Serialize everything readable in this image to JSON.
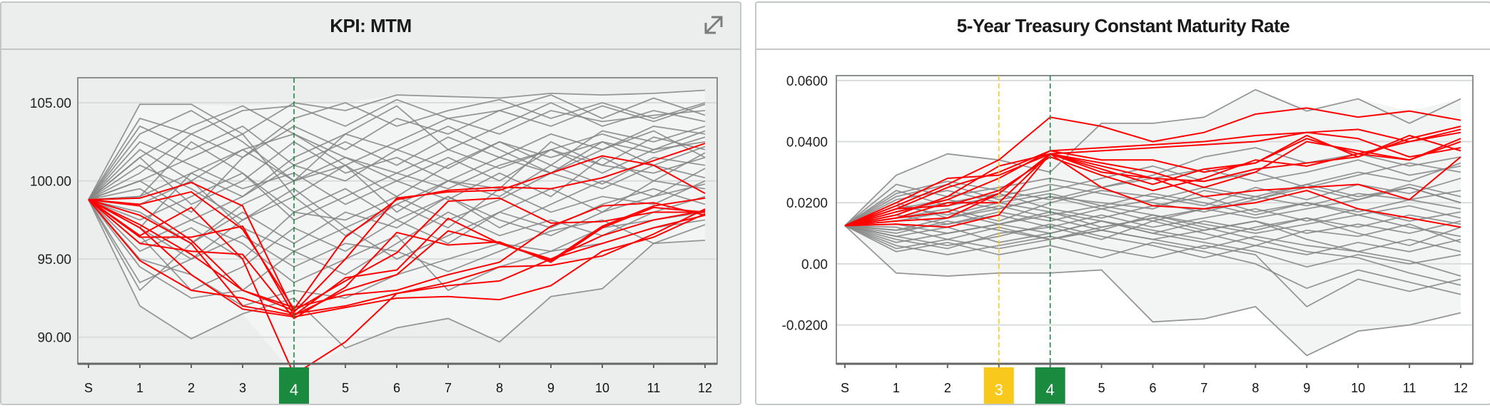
{
  "chart_data": [
    {
      "type": "line",
      "title": "KPI: MTM",
      "categories": [
        "S",
        "1",
        "2",
        "3",
        "4",
        "5",
        "6",
        "7",
        "8",
        "9",
        "10",
        "11",
        "12"
      ],
      "ylim": [
        88.3,
        106.6
      ],
      "yticks": [
        {
          "value": 105,
          "label": "105.00"
        },
        {
          "value": 100,
          "label": "100.00"
        },
        {
          "value": 95,
          "label": "95.00"
        },
        {
          "value": 90,
          "label": "90.00"
        }
      ],
      "grid": true,
      "legend": "none",
      "markers": [
        {
          "category": "4",
          "label": "4",
          "color": "#1a8a3f"
        }
      ],
      "colors": {
        "background_series": "#858585",
        "highlight_series": "#ff0000",
        "envelope": "#f3f5f5"
      },
      "highlight_series": [
        [
          98.8,
          98.9,
          99.9,
          98.4,
          91.6,
          95.0,
          98.9,
          99.3,
          99.4,
          100.5,
          101.6,
          101.0,
          99.2
        ],
        [
          98.8,
          98.5,
          99.3,
          96.9,
          91.8,
          96.4,
          98.8,
          99.4,
          99.6,
          99.5,
          100.2,
          101.3,
          102.4
        ],
        [
          98.8,
          96.4,
          96.4,
          97.1,
          91.4,
          93.8,
          94.3,
          97.6,
          96.0,
          94.9,
          97.1,
          98.4,
          98.9
        ],
        [
          98.8,
          96.0,
          95.5,
          95.3,
          91.2,
          93.2,
          96.7,
          95.9,
          96.1,
          94.8,
          97.0,
          98.3,
          98.0
        ],
        [
          98.8,
          94.9,
          93.0,
          92.5,
          91.5,
          92.0,
          92.8,
          93.3,
          93.6,
          95.0,
          96.0,
          97.0,
          97.8
        ],
        [
          98.8,
          97.0,
          94.0,
          91.8,
          91.3,
          91.9,
          92.5,
          92.6,
          92.4,
          93.3,
          95.5,
          96.4,
          97.9
        ],
        [
          98.8,
          96.5,
          98.3,
          95.0,
          87.6,
          89.7,
          92.8,
          93.5,
          94.5,
          94.6,
          95.2,
          96.6,
          98.2
        ],
        [
          98.8,
          97.2,
          95.3,
          93.0,
          91.7,
          93.6,
          95.4,
          98.7,
          98.9,
          97.3,
          97.4,
          98.0,
          98.0
        ],
        [
          98.8,
          97.8,
          96.0,
          92.0,
          91.4,
          93.0,
          94.0,
          96.8,
          96.0,
          95.0,
          96.5,
          97.5,
          98.1
        ],
        [
          98.8,
          98.4,
          96.2,
          93.0,
          91.9,
          92.7,
          93.0,
          94.0,
          94.8,
          97.1,
          98.4,
          98.6,
          97.8
        ]
      ],
      "background_series": [
        [
          98.8,
          104.9,
          104.9,
          103.0,
          105.0,
          104.5,
          105.5,
          105.4,
          105.3,
          105.6,
          105.5,
          105.6,
          105.8
        ],
        [
          98.8,
          92.0,
          89.9,
          91.5,
          92.5,
          89.3,
          90.6,
          91.2,
          89.7,
          92.6,
          93.1,
          96.0,
          96.2
        ],
        [
          98.8,
          101.5,
          103.5,
          104.8,
          103.0,
          101.0,
          102.5,
          104.0,
          103.0,
          104.5,
          103.8,
          104.2,
          104.5
        ],
        [
          98.8,
          97.0,
          100.5,
          99.0,
          101.5,
          103.0,
          102.0,
          100.8,
          102.5,
          101.0,
          103.2,
          102.5,
          103.5
        ],
        [
          98.8,
          95.5,
          97.0,
          95.0,
          98.0,
          97.5,
          99.0,
          97.5,
          98.8,
          100.5,
          99.5,
          101.0,
          100.2
        ],
        [
          98.8,
          102.5,
          101.0,
          99.5,
          100.5,
          98.5,
          100.0,
          101.5,
          100.0,
          102.0,
          101.0,
          102.8,
          102.0
        ],
        [
          98.8,
          93.5,
          95.0,
          96.5,
          94.5,
          96.0,
          95.5,
          94.2,
          95.5,
          96.8,
          97.5,
          96.0,
          97.2
        ],
        [
          98.8,
          100.0,
          98.0,
          101.5,
          103.5,
          102.0,
          104.0,
          103.0,
          104.5,
          103.5,
          104.8,
          103.8,
          104.9
        ],
        [
          98.8,
          99.0,
          102.5,
          100.5,
          98.0,
          99.5,
          97.5,
          99.0,
          97.0,
          98.5,
          100.0,
          99.0,
          100.8
        ],
        [
          98.8,
          96.5,
          93.0,
          94.5,
          97.0,
          95.5,
          97.5,
          96.0,
          98.0,
          97.0,
          98.5,
          99.5,
          98.5
        ],
        [
          98.8,
          103.5,
          102.0,
          103.5,
          101.0,
          102.5,
          101.0,
          102.8,
          101.5,
          103.0,
          102.0,
          103.5,
          103.0
        ],
        [
          98.8,
          98.0,
          96.0,
          98.5,
          100.0,
          101.5,
          100.0,
          98.8,
          100.5,
          99.0,
          101.5,
          100.0,
          101.8
        ],
        [
          98.8,
          101.0,
          99.5,
          97.5,
          99.5,
          97.0,
          98.5,
          100.0,
          99.0,
          101.0,
          99.8,
          101.5,
          101.0
        ],
        [
          98.8,
          94.5,
          92.5,
          93.0,
          95.5,
          94.0,
          96.0,
          98.0,
          96.5,
          97.5,
          96.5,
          98.0,
          99.0
        ],
        [
          98.8,
          100.5,
          103.0,
          101.5,
          104.0,
          105.0,
          103.5,
          104.5,
          105.2,
          104.0,
          105.0,
          104.0,
          105.0
        ],
        [
          98.8,
          97.5,
          99.0,
          100.5,
          97.5,
          99.0,
          100.5,
          99.5,
          101.0,
          102.0,
          100.5,
          102.0,
          102.5
        ],
        [
          98.8,
          102.0,
          100.0,
          102.0,
          100.0,
          101.0,
          99.0,
          101.0,
          102.5,
          101.5,
          102.5,
          101.0,
          102.2
        ],
        [
          98.8,
          96.0,
          97.5,
          96.0,
          93.5,
          95.0,
          96.5,
          93.0,
          94.5,
          95.5,
          97.0,
          97.5,
          98.0
        ],
        [
          98.8,
          99.5,
          97.5,
          99.0,
          101.0,
          100.0,
          102.0,
          103.5,
          102.0,
          100.5,
          102.0,
          103.2,
          101.5
        ],
        [
          98.8,
          103.0,
          104.5,
          102.5,
          100.0,
          103.0,
          104.8,
          102.0,
          103.5,
          105.0,
          103.5,
          104.5,
          103.8
        ],
        [
          98.8,
          98.5,
          100.0,
          97.0,
          95.5,
          97.0,
          95.0,
          96.5,
          98.0,
          99.5,
          98.0,
          99.0,
          99.8
        ],
        [
          98.8,
          95.0,
          94.0,
          92.0,
          93.0,
          92.5,
          94.0,
          95.0,
          96.0,
          95.5,
          96.0,
          97.0,
          97.5
        ],
        [
          98.8,
          101.5,
          98.5,
          100.0,
          102.5,
          100.5,
          101.5,
          100.0,
          101.5,
          100.5,
          102.5,
          101.8,
          102.8
        ],
        [
          98.8,
          100.0,
          101.5,
          103.0,
          99.0,
          101.0,
          98.0,
          100.0,
          99.5,
          102.5,
          101.0,
          100.5,
          101.5
        ],
        [
          98.8,
          97.0,
          95.0,
          97.5,
          99.0,
          96.5,
          98.5,
          97.0,
          99.5,
          98.0,
          99.0,
          98.5,
          100.0
        ],
        [
          98.8,
          104.0,
          103.0,
          104.5,
          104.8,
          103.5,
          105.2,
          104.0,
          104.5,
          105.5,
          104.0,
          105.3,
          104.2
        ],
        [
          98.8,
          93.0,
          96.0,
          98.0,
          96.0,
          98.0,
          97.0,
          99.0,
          97.5,
          96.5,
          98.0,
          100.0,
          99.5
        ],
        [
          98.8,
          99.0,
          100.5,
          102.0,
          103.0,
          101.5,
          100.5,
          102.0,
          100.8,
          102.0,
          103.0,
          102.0,
          103.2
        ]
      ]
    },
    {
      "type": "line",
      "title": "5-Year Treasury Constant Maturity Rate",
      "categories": [
        "S",
        "1",
        "2",
        "3",
        "4",
        "5",
        "6",
        "7",
        "8",
        "9",
        "10",
        "11",
        "12"
      ],
      "ylim": [
        -0.0327,
        0.0616
      ],
      "yticks": [
        {
          "value": 0.06,
          "label": "0.0600"
        },
        {
          "value": 0.04,
          "label": "0.0400"
        },
        {
          "value": 0.02,
          "label": "0.0200"
        },
        {
          "value": 0,
          "label": "0.00"
        },
        {
          "value": -0.02,
          "label": "-0.0200"
        }
      ],
      "grid": true,
      "legend": "none",
      "markers": [
        {
          "category": "3",
          "label": "3",
          "color": "#f8c81c"
        },
        {
          "category": "4",
          "label": "4",
          "color": "#1a8a3f"
        }
      ],
      "colors": {
        "background_series": "#858585",
        "highlight_series": "#ff0000",
        "envelope": "#f3f5f5"
      },
      "highlight_series": [
        [
          0.0125,
          0.019,
          0.026,
          0.034,
          0.048,
          0.045,
          0.04,
          0.043,
          0.049,
          0.051,
          0.048,
          0.05,
          0.047
        ],
        [
          0.0125,
          0.018,
          0.025,
          0.03,
          0.037,
          0.038,
          0.039,
          0.04,
          0.042,
          0.043,
          0.044,
          0.04,
          0.044
        ],
        [
          0.0125,
          0.016,
          0.022,
          0.032,
          0.036,
          0.033,
          0.03,
          0.025,
          0.03,
          0.04,
          0.037,
          0.034,
          0.041
        ],
        [
          0.0125,
          0.015,
          0.02,
          0.02,
          0.036,
          0.031,
          0.026,
          0.031,
          0.033,
          0.042,
          0.035,
          0.041,
          0.045
        ],
        [
          0.0125,
          0.014,
          0.015,
          0.023,
          0.036,
          0.03,
          0.028,
          0.022,
          0.024,
          0.025,
          0.026,
          0.021,
          0.035
        ],
        [
          0.0125,
          0.013,
          0.012,
          0.016,
          0.036,
          0.025,
          0.019,
          0.018,
          0.02,
          0.024,
          0.018,
          0.015,
          0.012
        ],
        [
          0.0125,
          0.017,
          0.021,
          0.028,
          0.037,
          0.034,
          0.034,
          0.03,
          0.033,
          0.041,
          0.036,
          0.034,
          0.04
        ],
        [
          0.0125,
          0.02,
          0.028,
          0.029,
          0.036,
          0.037,
          0.038,
          0.039,
          0.04,
          0.043,
          0.041,
          0.035,
          0.038
        ],
        [
          0.0125,
          0.018,
          0.019,
          0.024,
          0.035,
          0.029,
          0.024,
          0.028,
          0.034,
          0.032,
          0.036,
          0.04,
          0.043
        ],
        [
          0.0125,
          0.015,
          0.017,
          0.023,
          0.036,
          0.032,
          0.028,
          0.027,
          0.031,
          0.033,
          0.035,
          0.042,
          0.037
        ]
      ],
      "background_series": [
        [
          0.0125,
          0.029,
          0.036,
          0.034,
          0.03,
          0.046,
          0.046,
          0.048,
          0.057,
          0.05,
          0.054,
          0.046,
          0.054
        ],
        [
          0.0125,
          -0.003,
          -0.004,
          -0.003,
          -0.003,
          -0.002,
          -0.019,
          -0.018,
          -0.014,
          -0.03,
          -0.022,
          -0.02,
          -0.016
        ],
        [
          0.0125,
          0.02,
          0.015,
          0.018,
          0.022,
          0.02,
          0.018,
          0.024,
          0.021,
          0.026,
          0.022,
          0.025,
          0.02
        ],
        [
          0.0125,
          0.008,
          0.005,
          0.01,
          0.012,
          0.008,
          0.014,
          0.01,
          0.006,
          0.011,
          0.009,
          0.013,
          0.007
        ],
        [
          0.0125,
          0.015,
          0.018,
          0.014,
          0.02,
          0.024,
          0.022,
          0.019,
          0.025,
          0.021,
          0.026,
          0.023,
          0.028
        ],
        [
          0.0125,
          0.004,
          0.007,
          0.003,
          0.006,
          0.002,
          0.007,
          0.004,
          0.0,
          -0.008,
          -0.002,
          -0.006,
          -0.01
        ],
        [
          0.0125,
          0.026,
          0.022,
          0.025,
          0.028,
          0.025,
          0.028,
          0.031,
          0.027,
          0.03,
          0.034,
          0.029,
          0.032
        ],
        [
          0.0125,
          0.011,
          0.013,
          0.016,
          0.012,
          0.016,
          0.012,
          0.015,
          0.018,
          0.014,
          0.018,
          0.014,
          0.017
        ],
        [
          0.0125,
          0.009,
          0.012,
          0.007,
          0.01,
          0.014,
          0.011,
          0.008,
          0.012,
          0.015,
          0.01,
          0.006,
          0.012
        ],
        [
          0.0125,
          0.017,
          0.02,
          0.023,
          0.018,
          0.015,
          0.019,
          0.022,
          0.017,
          0.02,
          0.016,
          0.019,
          0.015
        ],
        [
          0.0125,
          0.006,
          0.003,
          0.006,
          0.009,
          0.005,
          0.002,
          0.006,
          0.003,
          -0.014,
          -0.005,
          -0.009,
          -0.005
        ],
        [
          0.0125,
          0.022,
          0.026,
          0.021,
          0.024,
          0.028,
          0.032,
          0.027,
          0.03,
          0.025,
          0.029,
          0.033,
          0.03
        ],
        [
          0.0125,
          0.013,
          0.01,
          0.013,
          0.016,
          0.019,
          0.016,
          0.013,
          0.01,
          0.013,
          0.016,
          0.012,
          0.009
        ],
        [
          0.0125,
          0.019,
          0.016,
          0.02,
          0.017,
          0.012,
          0.015,
          0.018,
          0.022,
          0.019,
          0.023,
          0.021,
          0.024
        ],
        [
          0.0125,
          0.01,
          0.014,
          0.011,
          0.008,
          0.011,
          0.008,
          0.005,
          0.009,
          0.006,
          0.004,
          0.008,
          0.004
        ],
        [
          0.0125,
          0.024,
          0.019,
          0.022,
          0.026,
          0.023,
          0.02,
          0.017,
          0.021,
          0.025,
          0.021,
          0.026,
          0.022
        ],
        [
          0.0125,
          0.007,
          0.01,
          0.013,
          0.017,
          0.014,
          0.01,
          0.007,
          0.004,
          -0.001,
          0.003,
          0.0,
          0.003
        ],
        [
          0.0125,
          0.016,
          0.013,
          0.017,
          0.014,
          0.018,
          0.021,
          0.025,
          0.022,
          0.026,
          0.03,
          0.027,
          0.033
        ],
        [
          0.0125,
          0.012,
          0.008,
          0.012,
          0.008,
          0.012,
          0.015,
          0.011,
          0.014,
          0.01,
          0.013,
          0.01,
          0.014
        ],
        [
          0.0125,
          0.021,
          0.024,
          0.02,
          0.023,
          0.019,
          0.023,
          0.02,
          0.016,
          0.02,
          0.017,
          0.021,
          0.018
        ],
        [
          0.0125,
          0.005,
          0.008,
          0.005,
          0.008,
          0.011,
          0.008,
          0.011,
          0.014,
          0.008,
          0.004,
          0.001,
          -0.004
        ],
        [
          0.0125,
          0.014,
          0.017,
          0.013,
          0.01,
          0.014,
          0.01,
          0.014,
          0.011,
          0.015,
          0.012,
          0.016,
          0.013
        ],
        [
          0.0125,
          0.018,
          0.021,
          0.018,
          0.022,
          0.018,
          0.014,
          0.018,
          0.015,
          0.018,
          0.021,
          0.025,
          0.02
        ],
        [
          0.0125,
          0.009,
          0.006,
          0.009,
          0.013,
          0.009,
          0.006,
          0.002,
          0.006,
          0.003,
          0.007,
          0.004,
          0.008
        ],
        [
          0.0125,
          0.023,
          0.027,
          0.024,
          0.021,
          0.025,
          0.029,
          0.035,
          0.038,
          0.033,
          0.036,
          0.032,
          0.035
        ],
        [
          0.0125,
          0.011,
          0.015,
          0.019,
          0.015,
          0.011,
          0.016,
          0.012,
          0.008,
          0.004,
          0.002,
          -0.003,
          -0.007
        ]
      ]
    }
  ],
  "panels": {
    "left": {
      "expand_icon": "expand-diagonal-arrows-icon"
    }
  }
}
